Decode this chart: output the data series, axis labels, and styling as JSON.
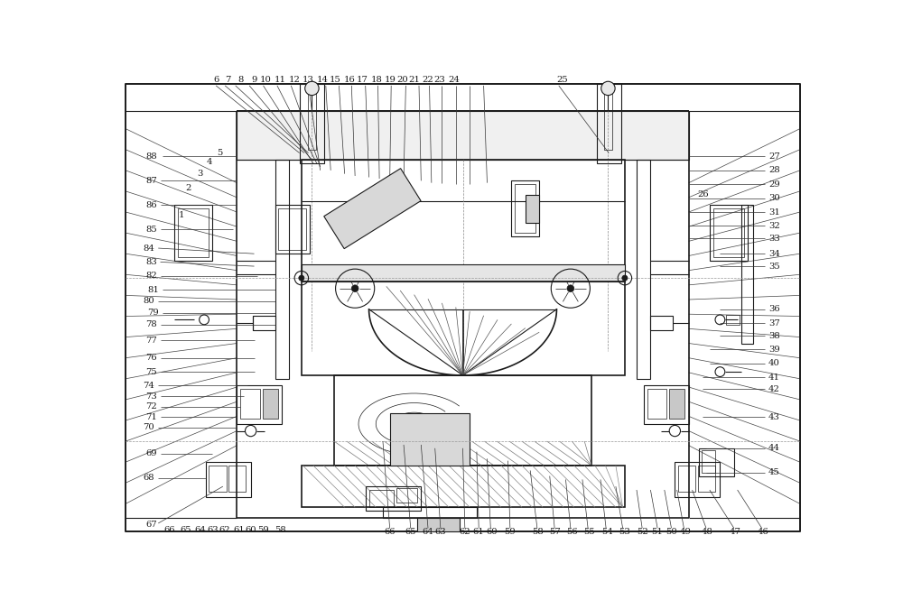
{
  "bg": "#ffffff",
  "lc": "#1a1a1a",
  "lc_light": "#666666",
  "lc_dash": "#888888",
  "fig_w": 10.0,
  "fig_h": 6.75,
  "dpi": 100,
  "fs": 7.2
}
